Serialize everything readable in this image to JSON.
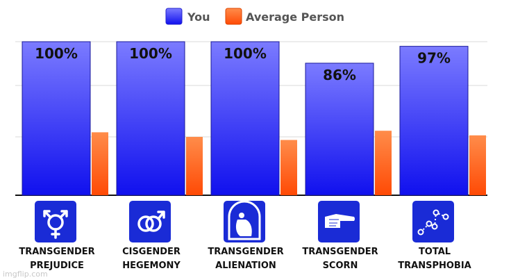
{
  "chart_data": {
    "type": "bar",
    "categories": [
      [
        "TRANSGENDER",
        "PREJUDICE"
      ],
      [
        "CISGENDER",
        "HEGEMONY"
      ],
      [
        "TRANSGENDER",
        "ALIENATION"
      ],
      [
        "TRANSGENDER",
        "SCORN"
      ],
      [
        "TOTAL",
        "TRANSPHOBIA"
      ]
    ],
    "series": [
      {
        "name": "You",
        "values": [
          100,
          100,
          100,
          86,
          97
        ],
        "labels": [
          "100%",
          "100%",
          "100%",
          "86%",
          "97%"
        ],
        "color_top": "#7b7bff",
        "color_bottom": "#1010ee"
      },
      {
        "name": "Average Person",
        "values": [
          41,
          38,
          36,
          42,
          39
        ],
        "color_top": "#ff8c4a",
        "color_bottom": "#ff4a05"
      }
    ],
    "icons": [
      "transgender-symbol-icon",
      "interlocked-male-symbols-icon",
      "hugging-knees-figure-icon",
      "pointing-hand-icon",
      "dot-plot-icon"
    ],
    "ylim": [
      0,
      100
    ],
    "grid": true,
    "legend": "top-center"
  },
  "watermark": "imgflip.com",
  "colors": {
    "icon_bg": "#1a2bd6",
    "grid": "#d9d9d9",
    "axis": "#111111"
  }
}
